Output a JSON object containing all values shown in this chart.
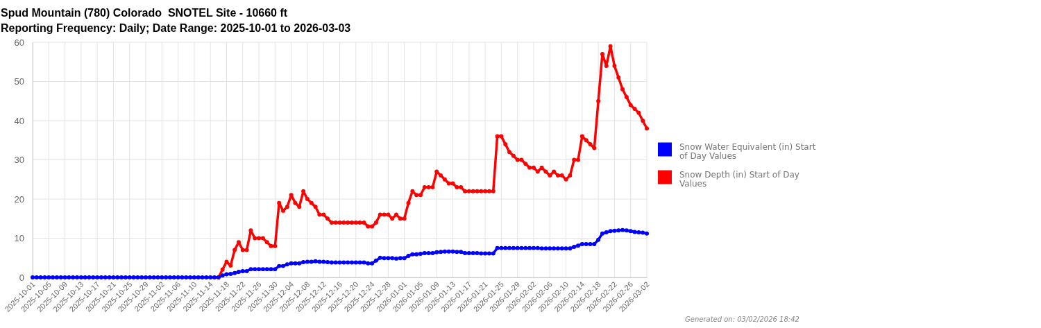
{
  "chart_data": {
    "type": "line",
    "title": "Spud Mountain (780) Colorado  SNOTEL Site - 10660 ft",
    "subtitle": "Reporting Frequency: Daily; Date Range: 2025-10-01 to 2026-03-03",
    "x": [
      "2025-10-01",
      "2025-10-02",
      "2025-10-03",
      "2025-10-04",
      "2025-10-05",
      "2025-10-06",
      "2025-10-07",
      "2025-10-08",
      "2025-10-09",
      "2025-10-10",
      "2025-10-11",
      "2025-10-12",
      "2025-10-13",
      "2025-10-14",
      "2025-10-15",
      "2025-10-16",
      "2025-10-17",
      "2025-10-18",
      "2025-10-19",
      "2025-10-20",
      "2025-10-21",
      "2025-10-22",
      "2025-10-23",
      "2025-10-24",
      "2025-10-25",
      "2025-10-26",
      "2025-10-27",
      "2025-10-28",
      "2025-10-29",
      "2025-10-30",
      "2025-10-31",
      "2025-11-01",
      "2025-11-02",
      "2025-11-03",
      "2025-11-04",
      "2025-11-05",
      "2025-11-06",
      "2025-11-07",
      "2025-11-08",
      "2025-11-09",
      "2025-11-10",
      "2025-11-11",
      "2025-11-12",
      "2025-11-13",
      "2025-11-14",
      "2025-11-15",
      "2025-11-16",
      "2025-11-17",
      "2025-11-18",
      "2025-11-19",
      "2025-11-20",
      "2025-11-21",
      "2025-11-22",
      "2025-11-23",
      "2025-11-24",
      "2025-11-25",
      "2025-11-26",
      "2025-11-27",
      "2025-11-28",
      "2025-11-29",
      "2025-11-30",
      "2025-12-01",
      "2025-12-02",
      "2025-12-03",
      "2025-12-04",
      "2025-12-05",
      "2025-12-06",
      "2025-12-07",
      "2025-12-08",
      "2025-12-09",
      "2025-12-10",
      "2025-12-11",
      "2025-12-12",
      "2025-12-13",
      "2025-12-14",
      "2025-12-15",
      "2025-12-16",
      "2025-12-17",
      "2025-12-18",
      "2025-12-19",
      "2025-12-20",
      "2025-12-21",
      "2025-12-22",
      "2025-12-23",
      "2025-12-24",
      "2025-12-25",
      "2025-12-26",
      "2025-12-27",
      "2025-12-28",
      "2025-12-29",
      "2025-12-30",
      "2025-12-31",
      "2026-01-01",
      "2026-01-02",
      "2026-01-03",
      "2026-01-04",
      "2026-01-05",
      "2026-01-06",
      "2026-01-07",
      "2026-01-08",
      "2026-01-09",
      "2026-01-10",
      "2026-01-11",
      "2026-01-12",
      "2026-01-13",
      "2026-01-14",
      "2026-01-15",
      "2026-01-16",
      "2026-01-17",
      "2026-01-18",
      "2026-01-19",
      "2026-01-20",
      "2026-01-21",
      "2026-01-22",
      "2026-01-23",
      "2026-01-24",
      "2026-01-25",
      "2026-01-26",
      "2026-01-27",
      "2026-01-28",
      "2026-01-29",
      "2026-01-30",
      "2026-01-31",
      "2026-02-01",
      "2026-02-02",
      "2026-02-03",
      "2026-02-04",
      "2026-02-05",
      "2026-02-06",
      "2026-02-07",
      "2026-02-08",
      "2026-02-09",
      "2026-02-10",
      "2026-02-11",
      "2026-02-12",
      "2026-02-13",
      "2026-02-14",
      "2026-02-15",
      "2026-02-16",
      "2026-02-17",
      "2026-02-18",
      "2026-02-19",
      "2026-02-20",
      "2026-02-21",
      "2026-02-22",
      "2026-02-23",
      "2026-02-24",
      "2026-02-25",
      "2026-02-26",
      "2026-02-27",
      "2026-02-28",
      "2026-03-01",
      "2026-03-02"
    ],
    "series": [
      {
        "name": "Snow Water Equivalent (in) Start of Day Values",
        "color": "#0000ff",
        "values": [
          0,
          0,
          0,
          0,
          0,
          0,
          0,
          0,
          0,
          0,
          0,
          0,
          0,
          0,
          0,
          0,
          0,
          0,
          0,
          0,
          0,
          0,
          0,
          0,
          0,
          0,
          0,
          0,
          0,
          0,
          0,
          0,
          0,
          0,
          0,
          0,
          0,
          0,
          0,
          0,
          0,
          0,
          0,
          0,
          0,
          0,
          0,
          0.5,
          0.8,
          0.9,
          1.1,
          1.4,
          1.6,
          1.6,
          2.1,
          2.1,
          2.1,
          2.1,
          2.1,
          2.1,
          2.1,
          2.9,
          2.9,
          3.3,
          3.6,
          3.6,
          3.6,
          3.9,
          4.0,
          4.0,
          4.1,
          4.0,
          4.0,
          3.9,
          3.8,
          3.8,
          3.8,
          3.8,
          3.8,
          3.8,
          3.8,
          3.8,
          3.8,
          3.6,
          3.6,
          4.3,
          5.0,
          4.9,
          4.9,
          4.9,
          4.8,
          4.9,
          4.9,
          5.5,
          5.9,
          5.9,
          6.0,
          6.2,
          6.2,
          6.2,
          6.4,
          6.5,
          6.6,
          6.6,
          6.6,
          6.5,
          6.5,
          6.2,
          6.2,
          6.2,
          6.2,
          6.1,
          6.1,
          6.1,
          6.1,
          7.5,
          7.5,
          7.5,
          7.5,
          7.5,
          7.5,
          7.5,
          7.5,
          7.5,
          7.5,
          7.5,
          7.4,
          7.4,
          7.4,
          7.4,
          7.4,
          7.4,
          7.4,
          7.4,
          7.8,
          8.1,
          8.5,
          8.5,
          8.5,
          8.5,
          9.6,
          11.2,
          11.5,
          11.8,
          11.9,
          12.0,
          12.1,
          12.0,
          11.8,
          11.6,
          11.5,
          11.4,
          11.2
        ]
      },
      {
        "name": "Snow Depth (in) Start of Day Values",
        "color": "#ff0000",
        "values": [
          null,
          null,
          null,
          null,
          null,
          null,
          null,
          null,
          null,
          null,
          null,
          null,
          null,
          null,
          null,
          null,
          null,
          null,
          null,
          null,
          null,
          null,
          null,
          null,
          null,
          null,
          null,
          null,
          null,
          null,
          null,
          null,
          null,
          null,
          null,
          null,
          null,
          null,
          null,
          null,
          null,
          null,
          null,
          null,
          null,
          null,
          0,
          2,
          4,
          3,
          7,
          9,
          7,
          7,
          12,
          10,
          10,
          10,
          9,
          8,
          8,
          19,
          17,
          18,
          21,
          19,
          18,
          22,
          20,
          19,
          18,
          16,
          16,
          15,
          14,
          14,
          14,
          14,
          14,
          14,
          14,
          14,
          14,
          13,
          13,
          14,
          16,
          16,
          16,
          15,
          16,
          15,
          15,
          19,
          22,
          21,
          21,
          23,
          23,
          23,
          27,
          26,
          25,
          24,
          24,
          23,
          23,
          22,
          22,
          22,
          22,
          22,
          22,
          22,
          22,
          36,
          36,
          34,
          32,
          31,
          30,
          30,
          29,
          28,
          28,
          27,
          28,
          27,
          26,
          27,
          26,
          26,
          25,
          26,
          30,
          30,
          36,
          35,
          34,
          33,
          45,
          57,
          54,
          59,
          54,
          51,
          48,
          46,
          44,
          43,
          42,
          40,
          38
        ]
      }
    ],
    "xlim": [
      "2025-10-01",
      "2026-03-02"
    ],
    "xticks": [
      "2025-10-01",
      "2025-10-05",
      "2025-10-09",
      "2025-10-13",
      "2025-10-17",
      "2025-10-21",
      "2025-10-25",
      "2025-10-29",
      "2025-11-02",
      "2025-11-06",
      "2025-11-10",
      "2025-11-14",
      "2025-11-18",
      "2025-11-22",
      "2025-11-26",
      "2025-11-30",
      "2025-12-04",
      "2025-12-08",
      "2025-12-12",
      "2025-12-16",
      "2025-12-20",
      "2025-12-24",
      "2025-12-28",
      "2026-01-01",
      "2026-01-05",
      "2026-01-09",
      "2026-01-13",
      "2026-01-17",
      "2026-01-21",
      "2026-01-25",
      "2026-01-29",
      "2026-02-02",
      "2026-02-06",
      "2026-02-10",
      "2026-02-14",
      "2026-02-18",
      "2026-02-22",
      "2026-02-26",
      "2026-03-02"
    ],
    "ylim": [
      0,
      60
    ],
    "yticks": [
      0,
      10,
      20,
      30,
      40,
      50,
      60
    ],
    "grid": true,
    "legend": "right",
    "marker": "circle",
    "annotations": [
      "Generated on: 03/02/2026 18:42"
    ]
  }
}
